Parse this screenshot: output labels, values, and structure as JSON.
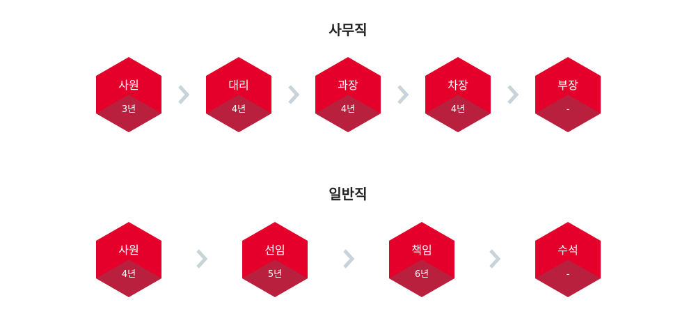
{
  "colors": {
    "hex_top": "#e4002b",
    "hex_bottom": "#b8203d",
    "arrow": "#c9d3da",
    "title": "#222222"
  },
  "icons": {
    "arrow": "chevron-right-icon"
  },
  "office": {
    "title": "사무직",
    "ranks": [
      {
        "name": "사원",
        "years": "3년"
      },
      {
        "name": "대리",
        "years": "4년"
      },
      {
        "name": "과장",
        "years": "4년"
      },
      {
        "name": "차장",
        "years": "4년"
      },
      {
        "name": "부장",
        "years": "-"
      }
    ]
  },
  "general": {
    "title": "일반직",
    "ranks": [
      {
        "name": "사원",
        "years": "4년"
      },
      {
        "name": "선임",
        "years": "5년"
      },
      {
        "name": "책임",
        "years": "6년"
      },
      {
        "name": "수석",
        "years": "-"
      }
    ]
  }
}
